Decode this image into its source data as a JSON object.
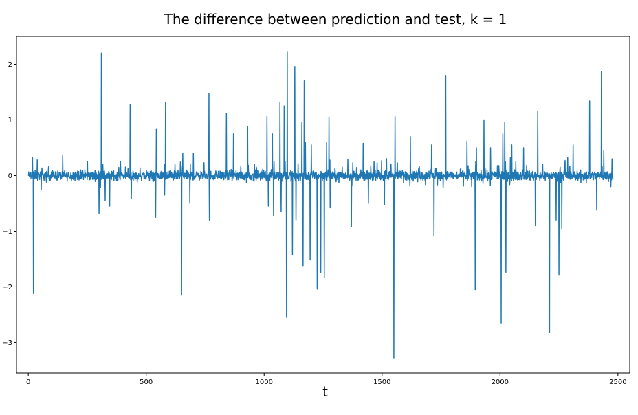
{
  "chart_data": {
    "type": "line",
    "title": "The difference between prediction and test, k = 1",
    "xlabel": "t",
    "ylabel": "",
    "xlim": [
      -50,
      2550
    ],
    "ylim": [
      -3.55,
      2.5
    ],
    "xticks": [
      0,
      500,
      1000,
      1500,
      2000,
      2500
    ],
    "yticks": [
      2,
      1,
      0,
      -1,
      -2,
      -3
    ],
    "ytick_labels": [
      "2",
      "1",
      "0",
      "−1",
      "−2",
      "−3"
    ],
    "grid": false,
    "series": [
      {
        "color": "#1f77b4",
        "n_points": 2480,
        "baseline_noise": 0.06,
        "spikes": [
          [
            22,
            -2.12
          ],
          [
            18,
            0.32
          ],
          [
            38,
            0.28
          ],
          [
            55,
            -0.25
          ],
          [
            300,
            -0.68
          ],
          [
            310,
            2.2
          ],
          [
            326,
            -0.45
          ],
          [
            345,
            -0.55
          ],
          [
            432,
            1.27
          ],
          [
            437,
            -0.42
          ],
          [
            540,
            -0.75
          ],
          [
            543,
            0.83
          ],
          [
            578,
            -0.35
          ],
          [
            582,
            1.32
          ],
          [
            650,
            -2.15
          ],
          [
            655,
            0.4
          ],
          [
            685,
            -0.5
          ],
          [
            700,
            0.4
          ],
          [
            766,
            1.48
          ],
          [
            768,
            -0.8
          ],
          [
            840,
            1.12
          ],
          [
            870,
            0.75
          ],
          [
            930,
            0.88
          ],
          [
            1012,
            1.06
          ],
          [
            1018,
            -0.55
          ],
          [
            1035,
            0.75
          ],
          [
            1040,
            -0.72
          ],
          [
            1067,
            1.31
          ],
          [
            1072,
            -0.65
          ],
          [
            1085,
            1.25
          ],
          [
            1095,
            -2.55
          ],
          [
            1098,
            2.23
          ],
          [
            1120,
            -1.42
          ],
          [
            1130,
            1.96
          ],
          [
            1135,
            -0.8
          ],
          [
            1160,
            0.95
          ],
          [
            1165,
            -1.62
          ],
          [
            1170,
            1.7
          ],
          [
            1175,
            0.6
          ],
          [
            1195,
            -1.52
          ],
          [
            1200,
            0.55
          ],
          [
            1225,
            -2.04
          ],
          [
            1240,
            -1.75
          ],
          [
            1255,
            -1.84
          ],
          [
            1265,
            0.6
          ],
          [
            1275,
            1.05
          ],
          [
            1280,
            -0.58
          ],
          [
            1370,
            -0.92
          ],
          [
            1420,
            0.58
          ],
          [
            1442,
            -0.5
          ],
          [
            1510,
            -0.52
          ],
          [
            1550,
            -3.28
          ],
          [
            1555,
            1.06
          ],
          [
            1620,
            0.7
          ],
          [
            1710,
            0.55
          ],
          [
            1720,
            -1.09
          ],
          [
            1770,
            1.8
          ],
          [
            1860,
            0.62
          ],
          [
            1895,
            -2.05
          ],
          [
            1900,
            0.5
          ],
          [
            1932,
            1.0
          ],
          [
            1960,
            0.5
          ],
          [
            2005,
            -2.65
          ],
          [
            2012,
            0.75
          ],
          [
            2020,
            0.95
          ],
          [
            2025,
            -1.74
          ],
          [
            2050,
            0.55
          ],
          [
            2100,
            0.5
          ],
          [
            2150,
            -0.9
          ],
          [
            2160,
            1.16
          ],
          [
            2210,
            -2.82
          ],
          [
            2238,
            -0.8
          ],
          [
            2250,
            -1.78
          ],
          [
            2262,
            -0.95
          ],
          [
            2310,
            0.55
          ],
          [
            2380,
            1.34
          ],
          [
            2410,
            -0.62
          ],
          [
            2430,
            1.87
          ],
          [
            2440,
            0.45
          ],
          [
            2470,
            -0.2
          ],
          [
            2475,
            0.3
          ]
        ]
      }
    ]
  }
}
